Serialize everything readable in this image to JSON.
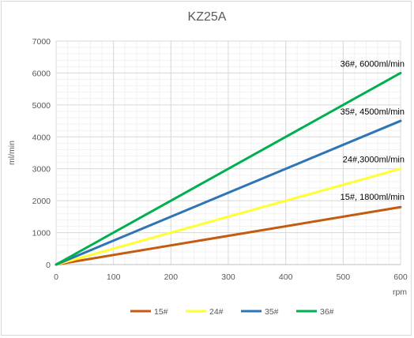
{
  "chart_data": {
    "type": "line",
    "title": "KZ25A",
    "xlabel": "rpm",
    "ylabel": "ml/min",
    "xlim": [
      0,
      600
    ],
    "ylim": [
      0,
      7000
    ],
    "xticks": [
      "0",
      "100",
      "200",
      "300",
      "400",
      "500",
      "600"
    ],
    "yticks": [
      "0",
      "1000",
      "2000",
      "3000",
      "4000",
      "5000",
      "6000",
      "7000"
    ],
    "grid": true,
    "legend_position": "bottom",
    "series": [
      {
        "name": "15#",
        "color": "#c55a11",
        "x": [
          0,
          600
        ],
        "y": [
          0,
          1800
        ],
        "annotation": "15#,  1800ml/min"
      },
      {
        "name": "24#",
        "color": "#ffff33",
        "x": [
          0,
          600
        ],
        "y": [
          0,
          3000
        ],
        "annotation": "24#,3000ml/min"
      },
      {
        "name": "35#",
        "color": "#2e75b6",
        "x": [
          0,
          600
        ],
        "y": [
          0,
          4500
        ],
        "annotation": "35#,  4500ml/min"
      },
      {
        "name": "36#",
        "color": "#00b050",
        "x": [
          0,
          600
        ],
        "y": [
          0,
          6000
        ],
        "annotation": "36#,  6000ml/min"
      }
    ]
  }
}
